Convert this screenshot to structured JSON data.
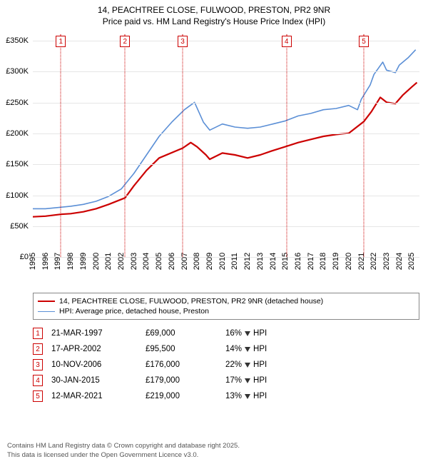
{
  "title_line1": "14, PEACHTREE CLOSE, FULWOOD, PRESTON, PR2 9NR",
  "title_line2": "Price paid vs. HM Land Registry's House Price Index (HPI)",
  "chart": {
    "type": "line",
    "background_color": "#ffffff",
    "grid_color": "#e6e6e6",
    "axis_color": "#666666",
    "tick_fontsize": 11,
    "x_start": 1995,
    "x_end": 2025.6,
    "x_ticks": [
      1995,
      1996,
      1997,
      1998,
      1999,
      2000,
      2001,
      2002,
      2003,
      2004,
      2005,
      2006,
      2007,
      2008,
      2009,
      2010,
      2011,
      2012,
      2013,
      2014,
      2015,
      2016,
      2017,
      2018,
      2019,
      2020,
      2021,
      2022,
      2023,
      2024,
      2025
    ],
    "y_min": 0,
    "y_max": 360000,
    "y_ticks": [
      0,
      50000,
      100000,
      150000,
      200000,
      250000,
      300000,
      350000
    ],
    "y_tick_labels": [
      "£0",
      "£50K",
      "£100K",
      "£150K",
      "£200K",
      "£250K",
      "£300K",
      "£350K"
    ],
    "series": [
      {
        "id": "hpi",
        "label": "HPI: Average price, detached house, Preston",
        "color": "#5b8fd6",
        "width": 1.6,
        "points": [
          [
            1995,
            78000
          ],
          [
            1996,
            78000
          ],
          [
            1997,
            80000
          ],
          [
            1998,
            82000
          ],
          [
            1999,
            85000
          ],
          [
            2000,
            90000
          ],
          [
            2001,
            98000
          ],
          [
            2002,
            110000
          ],
          [
            2003,
            135000
          ],
          [
            2004,
            165000
          ],
          [
            2005,
            195000
          ],
          [
            2006,
            218000
          ],
          [
            2007,
            238000
          ],
          [
            2007.8,
            250000
          ],
          [
            2008.5,
            218000
          ],
          [
            2009,
            205000
          ],
          [
            2010,
            215000
          ],
          [
            2011,
            210000
          ],
          [
            2012,
            208000
          ],
          [
            2013,
            210000
          ],
          [
            2014,
            215000
          ],
          [
            2015,
            220000
          ],
          [
            2016,
            228000
          ],
          [
            2017,
            232000
          ],
          [
            2018,
            238000
          ],
          [
            2019,
            240000
          ],
          [
            2020,
            245000
          ],
          [
            2020.7,
            238000
          ],
          [
            2021,
            255000
          ],
          [
            2021.7,
            278000
          ],
          [
            2022,
            295000
          ],
          [
            2022.7,
            315000
          ],
          [
            2023,
            302000
          ],
          [
            2023.7,
            298000
          ],
          [
            2024,
            310000
          ],
          [
            2024.7,
            322000
          ],
          [
            2025.3,
            335000
          ]
        ]
      },
      {
        "id": "price",
        "label": "14, PEACHTREE CLOSE, FULWOOD, PRESTON, PR2 9NR (detached house)",
        "color": "#cc0000",
        "width": 2.2,
        "points": [
          [
            1995,
            65000
          ],
          [
            1996,
            66000
          ],
          [
            1997.22,
            69000
          ],
          [
            1998,
            70000
          ],
          [
            1999,
            73000
          ],
          [
            2000,
            78000
          ],
          [
            2001,
            85000
          ],
          [
            2002.3,
            95500
          ],
          [
            2003,
            115000
          ],
          [
            2004,
            140000
          ],
          [
            2005,
            160000
          ],
          [
            2006.86,
            176000
          ],
          [
            2007.5,
            185000
          ],
          [
            2008,
            178000
          ],
          [
            2008.7,
            165000
          ],
          [
            2009,
            158000
          ],
          [
            2010,
            168000
          ],
          [
            2011,
            165000
          ],
          [
            2012,
            160000
          ],
          [
            2013,
            165000
          ],
          [
            2014,
            172000
          ],
          [
            2015.08,
            179000
          ],
          [
            2016,
            185000
          ],
          [
            2017,
            190000
          ],
          [
            2018,
            195000
          ],
          [
            2019,
            198000
          ],
          [
            2020,
            200000
          ],
          [
            2021.2,
            219000
          ],
          [
            2021.8,
            235000
          ],
          [
            2022.5,
            258000
          ],
          [
            2023,
            250000
          ],
          [
            2023.7,
            248000
          ],
          [
            2024.3,
            262000
          ],
          [
            2025,
            275000
          ],
          [
            2025.4,
            282000
          ]
        ]
      }
    ],
    "markers": [
      {
        "n": "1",
        "x": 1997.22,
        "color": "#cc0000"
      },
      {
        "n": "2",
        "x": 2002.3,
        "color": "#cc0000"
      },
      {
        "n": "3",
        "x": 2006.86,
        "color": "#cc0000"
      },
      {
        "n": "4",
        "x": 2015.08,
        "color": "#cc0000"
      },
      {
        "n": "5",
        "x": 2021.2,
        "color": "#cc0000"
      }
    ]
  },
  "legend": [
    {
      "color": "#cc0000",
      "width": 2.2,
      "label": "14, PEACHTREE CLOSE, FULWOOD, PRESTON, PR2 9NR (detached house)"
    },
    {
      "color": "#5b8fd6",
      "width": 1.6,
      "label": "HPI: Average price, detached house, Preston"
    }
  ],
  "table": [
    {
      "n": "1",
      "color": "#cc0000",
      "date": "21-MAR-1997",
      "price": "£69,000",
      "diff": "16%",
      "vs": "HPI"
    },
    {
      "n": "2",
      "color": "#cc0000",
      "date": "17-APR-2002",
      "price": "£95,500",
      "diff": "14%",
      "vs": "HPI"
    },
    {
      "n": "3",
      "color": "#cc0000",
      "date": "10-NOV-2006",
      "price": "£176,000",
      "diff": "22%",
      "vs": "HPI"
    },
    {
      "n": "4",
      "color": "#cc0000",
      "date": "30-JAN-2015",
      "price": "£179,000",
      "diff": "17%",
      "vs": "HPI"
    },
    {
      "n": "5",
      "color": "#cc0000",
      "date": "12-MAR-2021",
      "price": "£219,000",
      "diff": "13%",
      "vs": "HPI"
    }
  ],
  "footer_line1": "Contains HM Land Registry data © Crown copyright and database right 2025.",
  "footer_line2": "This data is licensed under the Open Government Licence v3.0."
}
